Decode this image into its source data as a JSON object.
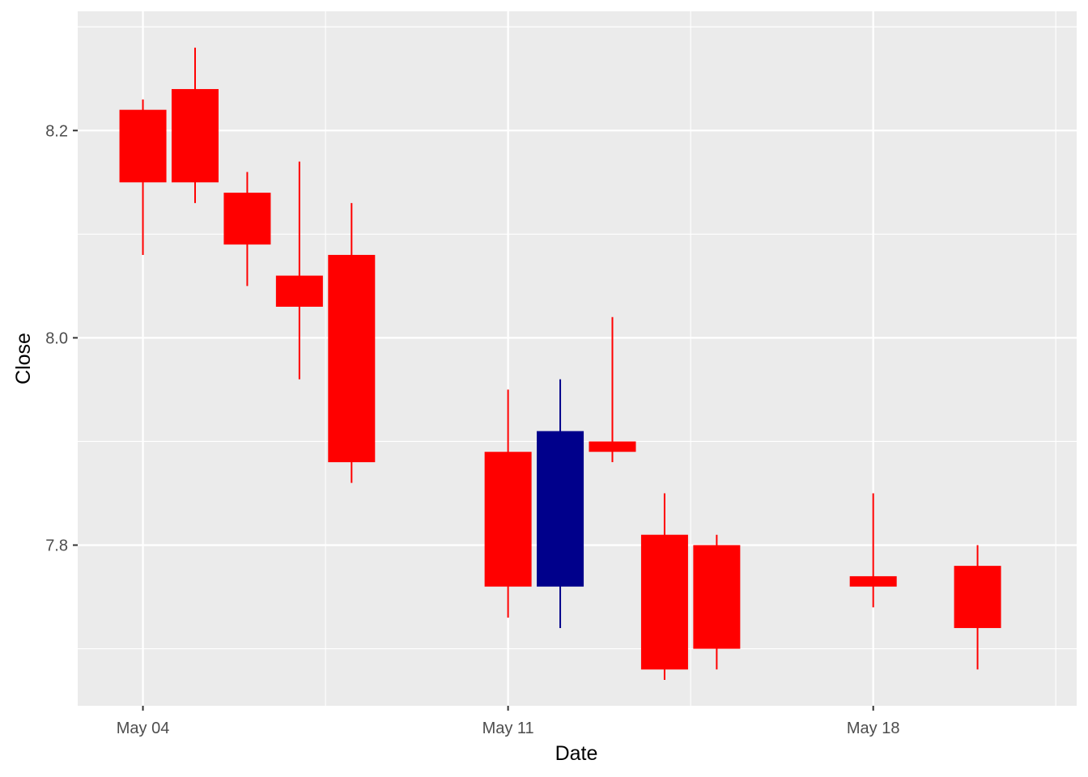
{
  "chart_data": {
    "type": "candlestick",
    "title": "",
    "xlabel": "Date",
    "ylabel": "Close",
    "x_ticks": [
      {
        "label": "May 04",
        "day": 4
      },
      {
        "label": "May 11",
        "day": 11
      },
      {
        "label": "May 18",
        "day": 18
      }
    ],
    "y_ticks": [
      7.8,
      8.0,
      8.2
    ],
    "y_tick_labels": [
      "7.8",
      "8.0",
      "8.2"
    ],
    "xlim": [
      2.75,
      21.9
    ],
    "ylim": [
      7.645,
      8.315
    ],
    "grid": true,
    "colors": {
      "down": "#FF0000",
      "up": "#00008B",
      "panel_background": "#EBEBEB",
      "grid_major": "#FFFFFF",
      "tick_label": "#4D4D4D"
    },
    "candles": [
      {
        "date": "May 04",
        "day": 4,
        "open": 8.22,
        "high": 8.23,
        "low": 8.08,
        "close": 8.15
      },
      {
        "date": "May 05",
        "day": 5,
        "open": 8.24,
        "high": 8.28,
        "low": 8.13,
        "close": 8.15
      },
      {
        "date": "May 06",
        "day": 6,
        "open": 8.14,
        "high": 8.16,
        "low": 8.05,
        "close": 8.09
      },
      {
        "date": "May 07",
        "day": 7,
        "open": 8.06,
        "high": 8.17,
        "low": 7.96,
        "close": 8.03
      },
      {
        "date": "May 08",
        "day": 8,
        "open": 8.08,
        "high": 8.13,
        "low": 7.86,
        "close": 7.88
      },
      {
        "date": "May 11",
        "day": 11,
        "open": 7.89,
        "high": 7.95,
        "low": 7.73,
        "close": 7.76
      },
      {
        "date": "May 12",
        "day": 12,
        "open": 7.76,
        "high": 7.96,
        "low": 7.72,
        "close": 7.91
      },
      {
        "date": "May 13",
        "day": 13,
        "open": 7.9,
        "high": 8.02,
        "low": 7.88,
        "close": 7.89
      },
      {
        "date": "May 14",
        "day": 14,
        "open": 7.81,
        "high": 7.85,
        "low": 7.67,
        "close": 7.68
      },
      {
        "date": "May 15",
        "day": 15,
        "open": 7.8,
        "high": 7.81,
        "low": 7.68,
        "close": 7.7
      },
      {
        "date": "May 18",
        "day": 18,
        "open": 7.77,
        "high": 7.85,
        "low": 7.74,
        "close": 7.76
      },
      {
        "date": "May 20",
        "day": 20,
        "open": 7.78,
        "high": 7.8,
        "low": 7.68,
        "close": 7.72
      }
    ]
  }
}
